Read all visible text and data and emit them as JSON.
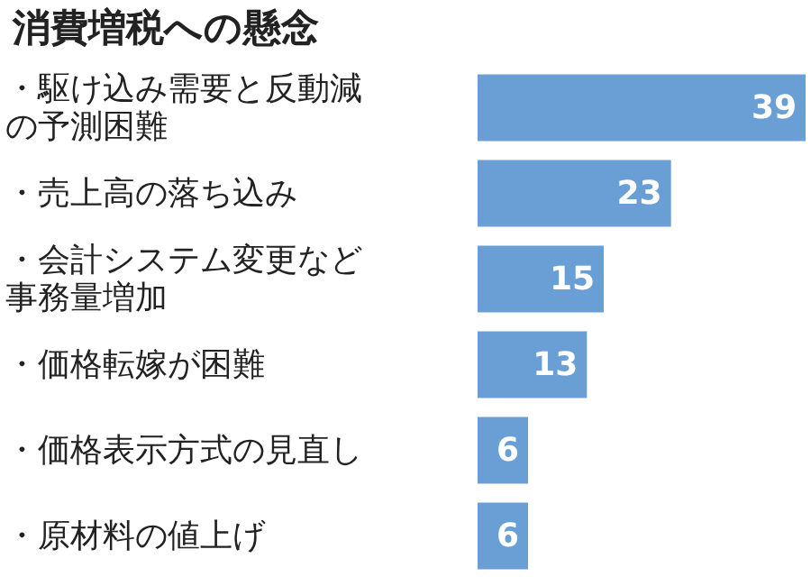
{
  "chart_data": {
    "type": "bar",
    "orientation": "horizontal",
    "title": "消費増税への懸念",
    "categories": [
      "・駆け込み需要と反動減の予測困難",
      "・売上高の落ち込み",
      "・会計システム変更など事務量増加",
      "・価格転嫁が困難",
      "・価格表示方式の見直し",
      "・原材料の値上げ"
    ],
    "values": [
      39,
      23,
      15,
      13,
      6,
      6
    ],
    "color": "#6a9fd6",
    "data_labels": true
  }
}
